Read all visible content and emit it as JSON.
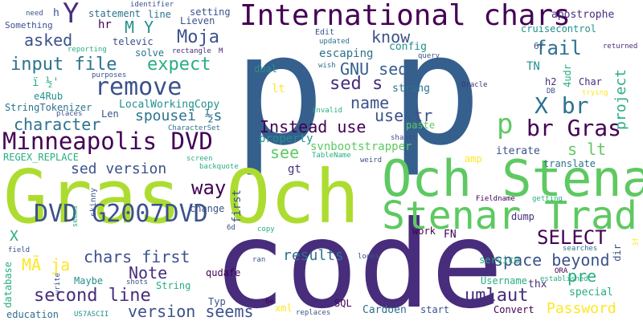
{
  "colors": {
    "background": "#ffffff",
    "dark_purple": "#440154",
    "purple": "#472d7b",
    "indigo": "#3b528b",
    "blue": "#2c728e",
    "teal": "#21918c",
    "sea_green": "#28ae80",
    "green": "#5ec962",
    "yellow_green": "#addc30",
    "yellow": "#fde725"
  },
  "words": {
    "p1": "p",
    "p2": "p",
    "code": "code",
    "gras_och": "Gras Och",
    "och_stenar": "Och Stenar",
    "stenar_trad": "Stenar Trad",
    "international_chars": "International chars",
    "minneapolis_dvd": "Minneapolis DVD",
    "dvd_g2007dvd": "DVD G2007DVD",
    "remove": "remove",
    "p_small": "p",
    "br_gras": "br Gras",
    "x_br": "X br",
    "y": "Y",
    "moja": "Moja",
    "m_y": "M Y",
    "asked": "asked",
    "input_file": "input file",
    "expect": "expect",
    "fail": "fail",
    "sed_s": "sed s",
    "know": "know",
    "gnu_sed": "GNU sed",
    "name": "name",
    "use_tr": "use tr",
    "instead_use": "Instead use",
    "character": "character",
    "spouse": "spouseï ½s",
    "sed_version": "sed version",
    "way": "way",
    "see": "see",
    "s_lt": "s lt",
    "select": "SELECT",
    "space_beyond": "space beyond",
    "chars_first": "chars first",
    "note": "Note",
    "second_line": "second line",
    "version_seems": "version seems",
    "umlaut": "umlaut",
    "password": "Password",
    "pre": "pre",
    "results": "results",
    "ma_ja": "MÃ ja",
    "x_small": "X",
    "project": "project",
    "statement": "statement",
    "something": "Something",
    "need": "need",
    "h": "h",
    "hr": "hr",
    "e4rub": "e4Rub",
    "i_half": "ï ½'",
    "stringtokenizer": "StringTokenizer",
    "len": "Len",
    "localworkingcopy": "LocalWorkingCopy",
    "regex_replace": "REGEX_REPLACE",
    "charcterset": "CharacterSet",
    "property": "property",
    "svnbootstrapper": "svnbootstrapper",
    "paste": "paste",
    "amp": "amp",
    "iterate": "iterate",
    "translate": "translate",
    "gt": "gt",
    "lt": "lt",
    "strong": "strong",
    "tn": "TN",
    "config": "config",
    "escaping": "escaping",
    "dual": "dual",
    "edit": "Edit",
    "updated": "updated",
    "wish": "wish",
    "query": "query",
    "setting": "setting",
    "lieven": "Lieven",
    "line": "line",
    "identifier": "identifier",
    "apostrophe": "apostrophe",
    "cruisecontrol": "cruisecontrol",
    "sixf": "6f",
    "returned": "returned",
    "char": "Char",
    "h2": "h2",
    "db": "DB",
    "trying": "trying",
    "oracle": "Oracle",
    "fourudr": "4udr",
    "televic": "televic",
    "solve": "solve",
    "reporting": "reporting",
    "rectangle": "rectangle",
    "m_small": "M",
    "purposes": "purposes",
    "places": "places",
    "invalid": "invalid",
    "shapes": "shapes",
    "weird": "weird",
    "tablename": "TableName",
    "screen": "screen",
    "backquote": "backquote",
    "fieldname": "Fieldname",
    "getting": "getting",
    "dump": "dump",
    "first": "first",
    "change": "change",
    "skinny": "skinny",
    "seems": "seems",
    "sixd": "6d",
    "copy": "copy",
    "work": "work",
    "fn": "FN",
    "looks": "looks",
    "service": "service",
    "searches": "searches",
    "ora": "ORA",
    "established": "established",
    "username": "Username",
    "thx": "thx",
    "special": "special",
    "start": "start",
    "convert": "Convert",
    "cardoen": "Cardoen",
    "sql": "SQL",
    "replaces": "replaces",
    "xml": "xml",
    "sixe": "6e",
    "typ": "Typ",
    "string": "String",
    "shots": "shots",
    "maybe": "Maybe",
    "qudafe": "qudafe",
    "ran": "ran",
    "us7ascii": "US7ASCII",
    "education": "education",
    "database": "database",
    "field": "field",
    "write": "write",
    "dir": "dir",
    "threef": "3f"
  }
}
